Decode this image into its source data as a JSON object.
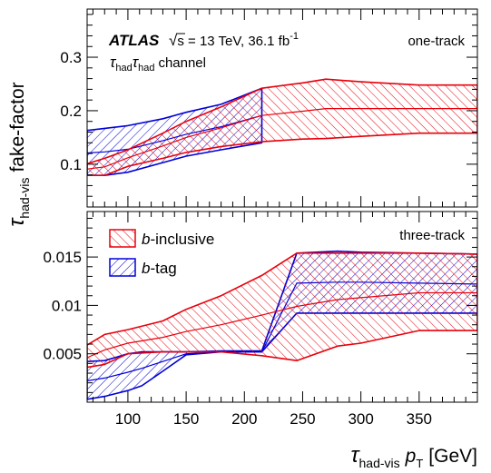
{
  "chart_data": {
    "type": "area",
    "x_axis": {
      "label_symbol": "τ",
      "label_symbol_sub": "had-vis",
      "label_pt": "p",
      "label_pt_sub": "T",
      "label_unit": "[GeV]",
      "range": [
        65,
        400
      ],
      "ticks": [
        100,
        150,
        200,
        250,
        300,
        350
      ],
      "tick_labels": [
        "100",
        "150",
        "200",
        "250",
        "300",
        "350"
      ]
    },
    "y_axis": {
      "label_symbol": "τ",
      "label_sub": "had-vis",
      "label_rest": "fake-factor"
    },
    "annotations": {
      "atlas": "ATLAS",
      "energy_text": "s = 13 TeV, 36.1 fb",
      "energy_sup": "-1",
      "channel_tau1": "τ",
      "channel_tau2": "τ",
      "channel_sub": "had",
      "channel_word": "channel"
    },
    "legend": [
      {
        "id": "inclusive",
        "b": "b",
        "rest": "-inclusive",
        "color": "#e8000b"
      },
      {
        "id": "btag",
        "b": "b",
        "rest": "-tag",
        "color": "#0000d8"
      }
    ],
    "panels": [
      {
        "id": "one-track",
        "label": "one-track",
        "ylim": [
          0.02,
          0.39
        ],
        "yticks": [
          0.1,
          0.2,
          0.3
        ],
        "ytick_labels": [
          "0.1",
          "0.2",
          "0.3"
        ],
        "series": [
          {
            "id": "btag",
            "color": "#0000d8",
            "x": [
              65,
              80,
              100,
              130,
              150,
              180,
              215
            ],
            "upper": [
              0.163,
              0.167,
              0.172,
              0.185,
              0.197,
              0.212,
              0.242
            ],
            "lower": [
              0.079,
              0.079,
              0.085,
              0.103,
              0.115,
              0.127,
              0.14
            ],
            "central": [
              0.121,
              0.123,
              0.128,
              0.144,
              0.156,
              0.17,
              0.191
            ]
          },
          {
            "id": "inclusive",
            "color": "#e8000b",
            "x": [
              65,
              80,
              100,
              130,
              150,
              180,
              215,
              250,
              270,
              300,
              350,
              400
            ],
            "upper": [
              0.101,
              0.111,
              0.127,
              0.158,
              0.18,
              0.207,
              0.242,
              0.252,
              0.259,
              0.254,
              0.248,
              0.248
            ],
            "lower": [
              0.079,
              0.079,
              0.096,
              0.111,
              0.122,
              0.133,
              0.142,
              0.147,
              0.148,
              0.152,
              0.158,
              0.158
            ],
            "central": [
              0.091,
              0.095,
              0.112,
              0.134,
              0.15,
              0.168,
              0.191,
              0.199,
              0.204,
              0.204,
              0.204,
              0.204
            ]
          }
        ]
      },
      {
        "id": "three-track",
        "label": "three-track",
        "ylim": [
          0.0,
          0.0197
        ],
        "yticks": [
          0.005,
          0.01,
          0.015
        ],
        "ytick_labels": [
          "0.005",
          "0.01",
          "0.015"
        ],
        "series": [
          {
            "id": "btag",
            "color": "#0000d8",
            "x": [
              65,
              80,
              100,
              112,
              130,
              150,
              180,
              215,
              245,
              280,
              300,
              350,
              400
            ],
            "upper": [
              0.0042,
              0.0043,
              0.005,
              0.0052,
              0.0052,
              0.0052,
              0.0053,
              0.0053,
              0.0154,
              0.0156,
              0.0155,
              0.0154,
              0.0153
            ],
            "lower": [
              0.0003,
              0.0006,
              0.0012,
              0.0017,
              0.0032,
              0.0049,
              0.0052,
              0.0052,
              0.0092,
              0.0092,
              0.0092,
              0.0092,
              0.0092
            ],
            "central": [
              0.0022,
              0.0025,
              0.0031,
              0.0035,
              0.0042,
              0.005,
              0.0052,
              0.0052,
              0.0123,
              0.0124,
              0.0124,
              0.0123,
              0.0122
            ]
          },
          {
            "id": "inclusive",
            "color": "#e8000b",
            "x": [
              65,
              80,
              100,
              130,
              150,
              180,
              215,
              245,
              280,
              300,
              350,
              400
            ],
            "upper": [
              0.0059,
              0.007,
              0.0075,
              0.0084,
              0.0096,
              0.011,
              0.0131,
              0.0154,
              0.0154,
              0.0154,
              0.0154,
              0.0153
            ],
            "lower": [
              0.0036,
              0.0039,
              0.005,
              0.0052,
              0.0052,
              0.0052,
              0.0048,
              0.0043,
              0.0058,
              0.0061,
              0.0074,
              0.0074
            ],
            "central": [
              0.0046,
              0.0054,
              0.0061,
              0.0067,
              0.0073,
              0.008,
              0.009,
              0.0099,
              0.0106,
              0.0108,
              0.0113,
              0.0113
            ]
          }
        ]
      }
    ]
  }
}
